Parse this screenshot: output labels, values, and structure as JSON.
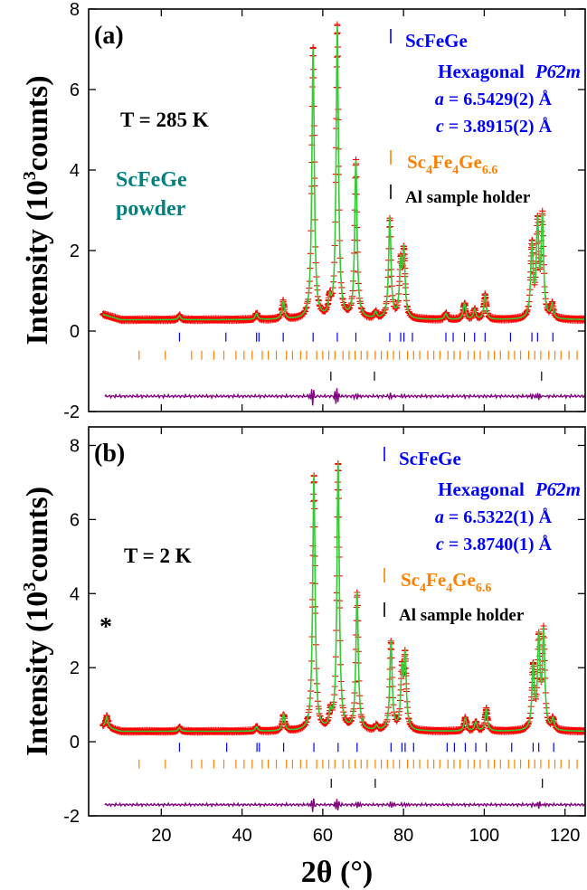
{
  "chart_data": [
    {
      "type": "scatter",
      "panel_label": "(a)",
      "temperature_label": "T = 285 K",
      "sample_label_line1": "ScFeGe",
      "sample_label_line2": "powder",
      "xlim": [
        2,
        125
      ],
      "ylim": [
        -2,
        8
      ],
      "x_ticks": [
        20,
        40,
        60,
        80,
        100,
        120
      ],
      "y_ticks": [
        -2,
        0,
        2,
        4,
        6,
        8
      ],
      "ylabel": "Intensity (10",
      "ylabel_sup": "3",
      "ylabel_end": "counts)",
      "legend": {
        "phase1": "ScFeGe",
        "structure_prefix": "Hexagonal",
        "space_group": "P6̄2m",
        "a_label": "a",
        "a_value": "= 6.5429(2) Å",
        "c_label": "c",
        "c_value": "= 3.8915(2) Å",
        "phase2_parts": [
          "Sc",
          "4",
          "Fe",
          "4",
          "Ge",
          "6.6"
        ],
        "phase3": "Al sample holder"
      },
      "colors": {
        "observed": "#ff0000",
        "calculated": "#33cc33",
        "difference": "#800080",
        "phase1": "#0000ff",
        "phase2": "#ff8000",
        "phase3": "#000000",
        "sample_label": "#008080"
      },
      "background": 0.28,
      "peaks": [
        {
          "x": 24.5,
          "h": 0.1
        },
        {
          "x": 43.6,
          "h": 0.15
        },
        {
          "x": 50.2,
          "h": 0.45
        },
        {
          "x": 57.6,
          "h": 6.7
        },
        {
          "x": 61.7,
          "h": 0.4
        },
        {
          "x": 63.6,
          "h": 7.25
        },
        {
          "x": 68.2,
          "h": 3.9
        },
        {
          "x": 73.1,
          "h": 0.15
        },
        {
          "x": 76.6,
          "h": 2.5
        },
        {
          "x": 79.3,
          "h": 1.3
        },
        {
          "x": 80.1,
          "h": 1.6
        },
        {
          "x": 90.5,
          "h": 0.15
        },
        {
          "x": 95.1,
          "h": 0.4
        },
        {
          "x": 97.6,
          "h": 0.25
        },
        {
          "x": 100.2,
          "h": 0.6
        },
        {
          "x": 111.8,
          "h": 1.8
        },
        {
          "x": 113.2,
          "h": 2.3
        },
        {
          "x": 114.4,
          "h": 2.45
        },
        {
          "x": 116.8,
          "h": 0.35
        }
      ],
      "tick_rows": [
        {
          "y": -0.15,
          "color": "#0000ff",
          "positions": [
            24.5,
            36.0,
            43.6,
            44.2,
            50.2,
            57.6,
            63.6,
            68.2,
            76.6,
            79.3,
            80.1,
            82.2,
            90.5,
            92.3,
            95.1,
            97.6,
            100.2,
            106.5,
            111.8,
            113.2,
            117.0
          ]
        },
        {
          "y": -0.6,
          "color": "#ff8000",
          "positions": [
            14.5,
            21.0,
            27.5,
            30.0,
            33.0,
            35.5,
            38.5,
            40.5,
            42.5,
            45.0,
            46.5,
            48.5,
            51.0,
            52.5,
            54.5,
            56.0,
            58.5,
            60.0,
            61.5,
            63.0,
            65.0,
            66.5,
            68.0,
            69.5,
            71.0,
            73.0,
            74.5,
            76.0,
            77.5,
            79.0,
            81.0,
            82.5,
            84.0,
            86.0,
            87.5,
            89.0,
            91.0,
            92.5,
            94.0,
            96.0,
            97.5,
            99.0,
            101.0,
            102.5,
            104.0,
            106.0,
            107.5,
            109.0,
            111.0,
            112.5,
            114.0,
            116.0,
            117.5,
            119.0,
            121.0,
            123.0
          ]
        },
        {
          "y": -1.12,
          "color": "#000000",
          "positions": [
            62.0,
            72.8,
            114.2
          ]
        }
      ],
      "diff_offset": -1.62
    },
    {
      "type": "scatter",
      "panel_label": "(b)",
      "temperature_label": "T = 2 K",
      "star_label": "*",
      "xlim": [
        2,
        125
      ],
      "ylim": [
        -2,
        8.5
      ],
      "x_ticks": [
        20,
        40,
        60,
        80,
        100,
        120
      ],
      "y_ticks": [
        -2,
        0,
        2,
        4,
        6,
        8
      ],
      "xlabel": "2θ (°)",
      "ylabel": "Intensity (10",
      "ylabel_sup": "3",
      "ylabel_end": "counts)",
      "legend": {
        "phase1": "ScFeGe",
        "structure_prefix": "Hexagonal",
        "space_group": "P6̄2m",
        "a_label": "a",
        "a_value": "= 6.5322(1) Å",
        "c_label": "c",
        "c_value": "= 3.8740(1) Å",
        "phase2_parts": [
          "Sc",
          "4",
          "Fe",
          "4",
          "Ge",
          "6.6"
        ],
        "phase3": "Al sample holder"
      },
      "colors": {
        "observed": "#ff0000",
        "calculated": "#33cc33",
        "difference": "#800080",
        "phase1": "#0000ff",
        "phase2": "#ff8000",
        "phase3": "#000000"
      },
      "background": 0.28,
      "peaks": [
        {
          "x": 6.5,
          "h": 0.3
        },
        {
          "x": 24.5,
          "h": 0.1
        },
        {
          "x": 43.6,
          "h": 0.12
        },
        {
          "x": 50.3,
          "h": 0.45
        },
        {
          "x": 57.8,
          "h": 6.9
        },
        {
          "x": 61.9,
          "h": 0.4
        },
        {
          "x": 63.8,
          "h": 7.2
        },
        {
          "x": 68.5,
          "h": 3.7
        },
        {
          "x": 73.3,
          "h": 0.12
        },
        {
          "x": 76.9,
          "h": 2.4
        },
        {
          "x": 79.6,
          "h": 1.5
        },
        {
          "x": 80.4,
          "h": 1.9
        },
        {
          "x": 95.3,
          "h": 0.35
        },
        {
          "x": 97.9,
          "h": 0.25
        },
        {
          "x": 100.5,
          "h": 0.6
        },
        {
          "x": 112.1,
          "h": 1.7
        },
        {
          "x": 113.5,
          "h": 2.4
        },
        {
          "x": 114.7,
          "h": 2.6
        },
        {
          "x": 117.0,
          "h": 0.3
        }
      ],
      "tick_rows": [
        {
          "y": -0.15,
          "color": "#0000ff",
          "positions": [
            24.5,
            36.2,
            43.7,
            44.3,
            50.3,
            57.8,
            63.8,
            68.5,
            76.9,
            79.6,
            80.4,
            82.5,
            90.8,
            92.6,
            95.3,
            97.9,
            100.5,
            106.8,
            112.1,
            113.5,
            117.2
          ]
        },
        {
          "y": -0.6,
          "color": "#ff8000",
          "positions": [
            14.5,
            21.0,
            27.5,
            30.0,
            33.0,
            35.5,
            38.5,
            40.5,
            42.5,
            45.0,
            46.5,
            48.5,
            51.0,
            52.5,
            54.5,
            56.0,
            58.5,
            60.0,
            61.5,
            63.0,
            65.0,
            66.5,
            68.0,
            69.5,
            71.0,
            73.0,
            74.5,
            76.0,
            77.5,
            79.0,
            81.0,
            82.5,
            84.0,
            86.0,
            87.5,
            89.0,
            91.0,
            92.5,
            94.0,
            96.0,
            97.5,
            99.0,
            101.0,
            102.5,
            104.0,
            106.0,
            107.5,
            109.0,
            111.0,
            112.5,
            114.0,
            116.0,
            117.5,
            119.0,
            121.0,
            123.0
          ]
        },
        {
          "y": -1.12,
          "color": "#000000",
          "positions": [
            62.1,
            73.0,
            114.4
          ]
        }
      ],
      "diff_offset": -1.7
    }
  ]
}
